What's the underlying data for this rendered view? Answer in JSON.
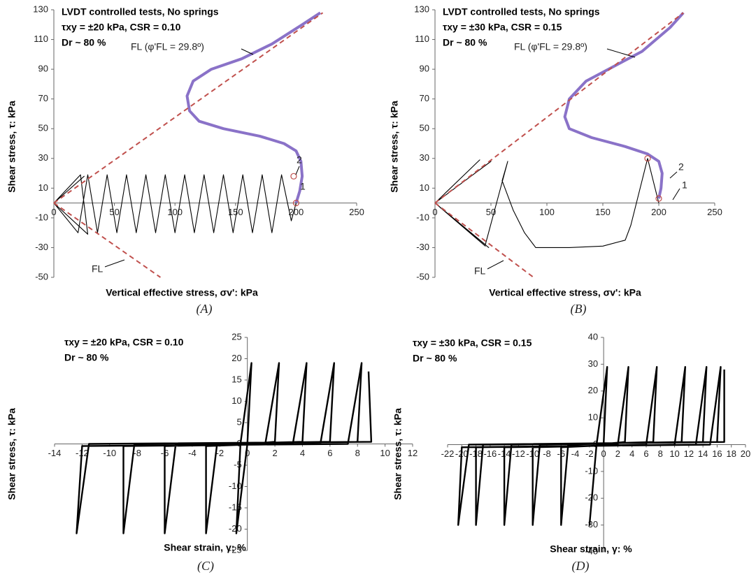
{
  "chart_data": [
    {
      "type": "line",
      "title": "LVDT controlled tests, No springs",
      "notes": [
        "τxy = ±20 kPa, CSR = 0.10",
        "Dr ~ 80 %"
      ],
      "annotations": [
        "FL (φ'FL = 29.8º)",
        "FL",
        "1",
        "2"
      ],
      "x_label": "Vertical effective stress, σv': kPa",
      "y_label": "Shear stress, τ: kPa",
      "caption": "(A)",
      "xlim": [
        0,
        250
      ],
      "ylim": [
        -50,
        130
      ],
      "xticks": [
        0,
        50,
        100,
        150,
        200,
        250
      ],
      "yticks": [
        -50,
        -30,
        -10,
        10,
        30,
        50,
        70,
        90,
        110,
        130
      ],
      "series": [
        {
          "color": "#000000",
          "line_width": 1.1,
          "x": [
            200,
            196,
            188,
            180,
            172,
            164,
            156,
            148,
            140,
            132,
            124,
            116,
            108,
            100,
            92,
            84,
            76,
            68,
            60,
            52,
            44,
            36,
            28,
            20,
            0,
            22,
            28,
            0,
            25,
            0
          ],
          "values": [
            0,
            -12,
            19,
            -20,
            19,
            -20,
            19,
            -20,
            19,
            -20,
            19,
            -20,
            19,
            -20,
            19,
            -20,
            19,
            -20,
            19,
            -20,
            19,
            -20,
            19,
            -20,
            0,
            19,
            -21,
            0,
            18,
            0
          ]
        },
        {
          "color": "#8a72c8",
          "line_width": 4,
          "x": [
            200,
            203,
            205,
            204,
            200,
            190,
            170,
            140,
            120,
            112,
            110,
            115,
            130,
            155,
            180,
            205,
            220
          ],
          "values": [
            0,
            8,
            18,
            28,
            35,
            40,
            45,
            50,
            55,
            62,
            72,
            82,
            90,
            97,
            107,
            120,
            128
          ]
        },
        {
          "color": "#c0504d",
          "line_width": 2,
          "dashed": true,
          "x": [
            0,
            222
          ],
          "values": [
            0,
            128
          ]
        },
        {
          "color": "#c0504d",
          "line_width": 2,
          "dashed": true,
          "x": [
            0,
            88
          ],
          "values": [
            0,
            -50
          ]
        },
        {
          "color": "#c0504d",
          "marker": "circle",
          "x": [
            200,
            198
          ],
          "values": [
            0,
            18
          ]
        }
      ]
    },
    {
      "type": "line",
      "title": "LVDT controlled tests, No springs",
      "notes": [
        "τxy = ±30 kPa, CSR = 0.15",
        "Dr ~ 80 %"
      ],
      "annotations": [
        "FL (φ'FL = 29.8º)",
        "FL",
        "1",
        "2"
      ],
      "x_label": "Vertical effective stress, σv': kPa",
      "y_label": "Shear stress, τ: kPa",
      "caption": "(B)",
      "xlim": [
        0,
        250
      ],
      "ylim": [
        -50,
        130
      ],
      "xticks": [
        0,
        50,
        100,
        150,
        200,
        250
      ],
      "yticks": [
        -50,
        -30,
        -10,
        10,
        30,
        50,
        70,
        90,
        110,
        130
      ],
      "series": [
        {
          "color": "#000000",
          "line_width": 1.1,
          "x": [
            200,
            195,
            190,
            180,
            175,
            170,
            150,
            120,
            90,
            80,
            70,
            60,
            65,
            55,
            45,
            0,
            50,
            0,
            45,
            0,
            48,
            0,
            40,
            0
          ],
          "values": [
            0,
            15,
            30,
            0,
            -15,
            -25,
            -29,
            -30,
            -30,
            -20,
            -5,
            15,
            28,
            0,
            -28,
            0,
            28,
            0,
            -29,
            0,
            -30,
            0,
            29,
            0
          ]
        },
        {
          "color": "#8a72c8",
          "line_width": 4,
          "x": [
            200,
            202,
            203,
            200,
            190,
            170,
            140,
            120,
            116,
            120,
            135,
            160,
            185,
            210,
            222
          ],
          "values": [
            3,
            10,
            20,
            28,
            33,
            38,
            44,
            50,
            58,
            70,
            82,
            92,
            102,
            118,
            128
          ]
        },
        {
          "color": "#c0504d",
          "line_width": 2,
          "dashed": true,
          "x": [
            0,
            222
          ],
          "values": [
            0,
            128
          ]
        },
        {
          "color": "#c0504d",
          "line_width": 2,
          "dashed": true,
          "x": [
            0,
            88
          ],
          "values": [
            0,
            -50
          ]
        },
        {
          "color": "#c0504d",
          "marker": "circle",
          "x": [
            200,
            190
          ],
          "values": [
            3,
            30
          ]
        }
      ]
    },
    {
      "type": "line",
      "notes": [
        "τxy = ±20 kPa, CSR = 0.10",
        "Dr ~ 80 %"
      ],
      "x_label": "Shear strain, γ: %",
      "y_label": "Shear stress, τ: kPa",
      "caption": "(C)",
      "xlim": [
        -14,
        12
      ],
      "ylim": [
        -25,
        25
      ],
      "xticks": [
        -14,
        -12,
        -10,
        -8,
        -6,
        -4,
        -2,
        0,
        2,
        4,
        6,
        8,
        10,
        12
      ],
      "yticks": [
        -25,
        -20,
        -15,
        -10,
        -5,
        0,
        5,
        10,
        15,
        20,
        25
      ],
      "series": [
        {
          "color": "#000000",
          "line_width": 2.4,
          "x": [
            0,
            0.3,
            -0.5,
            -0.8,
            0,
            2,
            2.3,
            1.3,
            -3,
            -3,
            -2.2,
            4,
            4.3,
            3.3,
            -6,
            -6,
            -5.2,
            6,
            6.3,
            5.3,
            -9,
            -9,
            -8.2,
            8,
            8.3,
            7.3,
            -12,
            -12.4,
            -11.5,
            9,
            8.8
          ],
          "values": [
            0,
            19,
            0,
            -21,
            0,
            0.5,
            19,
            0,
            -0.5,
            -21,
            0,
            0.5,
            19,
            0,
            -0.5,
            -21,
            0,
            0.5,
            19,
            0,
            -0.5,
            -21,
            0,
            0.5,
            19,
            0,
            -0.5,
            -21,
            0,
            0.5,
            17
          ]
        }
      ]
    },
    {
      "type": "line",
      "notes": [
        "τxy = ±30 kPa, CSR = 0.15",
        "Dr ~ 80 %"
      ],
      "x_label": "Shear strain, γ: %",
      "y_label": "Shear stress, τ: kPa",
      "caption": "(D)",
      "xlim": [
        -22,
        20
      ],
      "ylim": [
        -40,
        40
      ],
      "xticks": [
        -22,
        -20,
        -18,
        -16,
        -14,
        -12,
        -10,
        -8,
        -6,
        -4,
        -2,
        0,
        2,
        4,
        6,
        8,
        10,
        12,
        14,
        16,
        18,
        20
      ],
      "yticks": [
        -40,
        -30,
        -20,
        -10,
        0,
        10,
        20,
        30,
        40
      ],
      "series": [
        {
          "color": "#000000",
          "line_width": 2.4,
          "x": [
            0,
            0.5,
            -1,
            -2,
            -1,
            3,
            3.5,
            2,
            -6,
            -6,
            -5,
            7,
            7.5,
            6,
            -10,
            -10,
            -9,
            11,
            11.5,
            10,
            -14,
            -14,
            -13,
            14,
            14.5,
            13,
            -18,
            -18,
            -17,
            16,
            16.5,
            15,
            -20,
            -20.5,
            -19,
            17,
            17
          ],
          "values": [
            0,
            29,
            0,
            -30,
            0,
            1,
            29,
            0,
            -1,
            -30,
            0,
            1,
            29,
            0,
            -1,
            -30,
            0,
            1,
            29,
            0,
            -1,
            -30,
            0,
            1,
            29,
            0,
            -1,
            -30,
            0,
            1,
            29,
            0,
            -1,
            -30,
            0,
            1,
            28
          ]
        }
      ]
    }
  ]
}
